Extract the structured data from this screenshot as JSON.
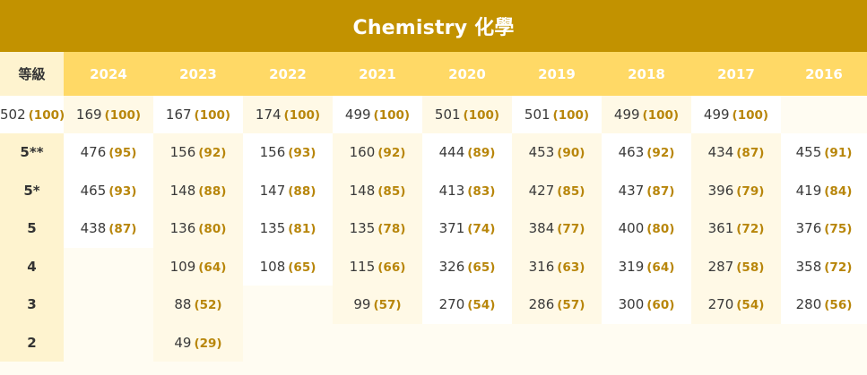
{
  "title": "Chemistry 化學",
  "grade_header": "等級",
  "years": [
    "2024",
    "2023",
    "2022",
    "2021",
    "2020",
    "2019",
    "2018",
    "2017",
    "2016"
  ],
  "rows": [
    {
      "grade": "",
      "cells": [
        {
          "count": "502",
          "pct": "(100)"
        },
        {
          "count": "169",
          "pct": "(100)"
        },
        {
          "count": "167",
          "pct": "(100)"
        },
        {
          "count": "174",
          "pct": "(100)"
        },
        {
          "count": "499",
          "pct": "(100)"
        },
        {
          "count": "501",
          "pct": "(100)"
        },
        {
          "count": "501",
          "pct": "(100)"
        },
        {
          "count": "499",
          "pct": "(100)"
        },
        {
          "count": "499",
          "pct": "(100)"
        }
      ]
    },
    {
      "grade": "5**",
      "cells": [
        {
          "count": "476",
          "pct": "(95)"
        },
        {
          "count": "156",
          "pct": "(92)"
        },
        {
          "count": "156",
          "pct": "(93)"
        },
        {
          "count": "160",
          "pct": "(92)"
        },
        {
          "count": "444",
          "pct": "(89)"
        },
        {
          "count": "453",
          "pct": "(90)"
        },
        {
          "count": "463",
          "pct": "(92)"
        },
        {
          "count": "434",
          "pct": "(87)"
        },
        {
          "count": "455",
          "pct": "(91)"
        }
      ]
    },
    {
      "grade": "5*",
      "cells": [
        {
          "count": "465",
          "pct": "(93)"
        },
        {
          "count": "148",
          "pct": "(88)"
        },
        {
          "count": "147",
          "pct": "(88)"
        },
        {
          "count": "148",
          "pct": "(85)"
        },
        {
          "count": "413",
          "pct": "(83)"
        },
        {
          "count": "427",
          "pct": "(85)"
        },
        {
          "count": "437",
          "pct": "(87)"
        },
        {
          "count": "396",
          "pct": "(79)"
        },
        {
          "count": "419",
          "pct": "(84)"
        }
      ]
    },
    {
      "grade": "5",
      "cells": [
        {
          "count": "438",
          "pct": "(87)"
        },
        {
          "count": "136",
          "pct": "(80)"
        },
        {
          "count": "135",
          "pct": "(81)"
        },
        {
          "count": "135",
          "pct": "(78)"
        },
        {
          "count": "371",
          "pct": "(74)"
        },
        {
          "count": "384",
          "pct": "(77)"
        },
        {
          "count": "400",
          "pct": "(80)"
        },
        {
          "count": "361",
          "pct": "(72)"
        },
        {
          "count": "376",
          "pct": "(75)"
        }
      ]
    },
    {
      "grade": "4",
      "cells": [
        null,
        {
          "count": "109",
          "pct": "(64)"
        },
        {
          "count": "108",
          "pct": "(65)"
        },
        {
          "count": "115",
          "pct": "(66)"
        },
        {
          "count": "326",
          "pct": "(65)"
        },
        {
          "count": "316",
          "pct": "(63)"
        },
        {
          "count": "319",
          "pct": "(64)"
        },
        {
          "count": "287",
          "pct": "(58)"
        },
        {
          "count": "358",
          "pct": "(72)"
        }
      ]
    },
    {
      "grade": "3",
      "cells": [
        null,
        {
          "count": "88",
          "pct": "(52)"
        },
        null,
        {
          "count": "99",
          "pct": "(57)"
        },
        {
          "count": "270",
          "pct": "(54)"
        },
        {
          "count": "286",
          "pct": "(57)"
        },
        {
          "count": "300",
          "pct": "(60)"
        },
        {
          "count": "270",
          "pct": "(54)"
        },
        {
          "count": "280",
          "pct": "(56)"
        }
      ]
    },
    {
      "grade": "2",
      "cells": [
        null,
        {
          "count": "49",
          "pct": "(29)"
        },
        null,
        null,
        null,
        null,
        null,
        null,
        null
      ]
    }
  ],
  "colors": {
    "title_bg": "#c29200",
    "header_bg": "#ffd966",
    "grade_col_bg": "#fef3cf",
    "pct_text": "#b8860b"
  }
}
